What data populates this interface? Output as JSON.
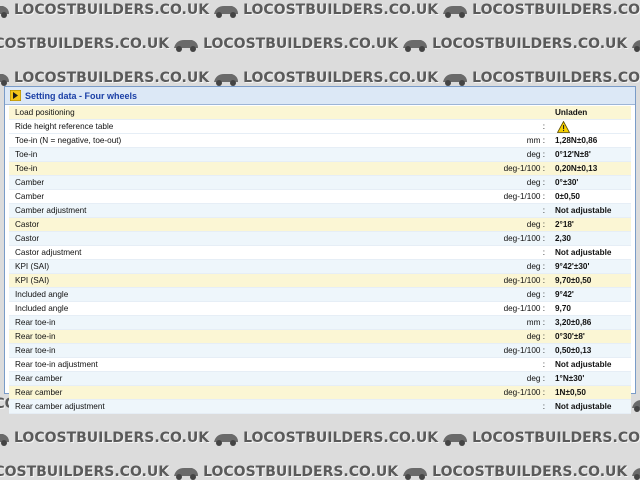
{
  "watermark": {
    "text": "LOCOSTBUILDERS.CO.UK"
  },
  "panel": {
    "title": "Setting data - Four wheels",
    "icon": "chevron-right-icon"
  },
  "rows": [
    {
      "label": "Load positioning",
      "unit": "",
      "value": "Unladen",
      "style": "hl"
    },
    {
      "label": "Ride height reference table",
      "unit": ":",
      "value": "",
      "icon": "warning-icon",
      "style": "plain"
    },
    {
      "label": "Toe-in (N = negative, toe-out)",
      "unit": "mm :",
      "value": "1,28N±0,86",
      "style": "plain"
    },
    {
      "label": "Toe-in",
      "unit": "deg :",
      "value": "0°12'N±8'",
      "style": "alt"
    },
    {
      "label": "Toe-in",
      "unit": "deg-1/100 :",
      "value": "0,20N±0,13",
      "style": "hl"
    },
    {
      "label": "Camber",
      "unit": "deg :",
      "value": "0°±30'",
      "style": "alt"
    },
    {
      "label": "Camber",
      "unit": "deg-1/100 :",
      "value": "0±0,50",
      "style": "plain"
    },
    {
      "label": "Camber adjustment",
      "unit": ":",
      "value": "Not adjustable",
      "style": "alt"
    },
    {
      "label": "Castor",
      "unit": "deg :",
      "value": "2°18'",
      "style": "hl"
    },
    {
      "label": "Castor",
      "unit": "deg-1/100 :",
      "value": "2,30",
      "style": "alt"
    },
    {
      "label": "Castor adjustment",
      "unit": ":",
      "value": "Not adjustable",
      "style": "plain"
    },
    {
      "label": "KPI (SAI)",
      "unit": "deg :",
      "value": "9°42'±30'",
      "style": "alt"
    },
    {
      "label": "KPI (SAI)",
      "unit": "deg-1/100 :",
      "value": "9,70±0,50",
      "style": "hl"
    },
    {
      "label": "Included angle",
      "unit": "deg :",
      "value": "9°42'",
      "style": "alt"
    },
    {
      "label": "Included angle",
      "unit": "deg-1/100 :",
      "value": "9,70",
      "style": "plain"
    },
    {
      "label": "Rear toe-in",
      "unit": "mm :",
      "value": "3,20±0,86",
      "style": "alt"
    },
    {
      "label": "Rear toe-in",
      "unit": "deg :",
      "value": "0°30'±8'",
      "style": "hl"
    },
    {
      "label": "Rear toe-in",
      "unit": "deg-1/100 :",
      "value": "0,50±0,13",
      "style": "alt"
    },
    {
      "label": "Rear toe-in adjustment",
      "unit": ":",
      "value": "Not adjustable",
      "style": "plain"
    },
    {
      "label": "Rear camber",
      "unit": "deg :",
      "value": "1°N±30'",
      "style": "alt"
    },
    {
      "label": "Rear camber",
      "unit": "deg-1/100 :",
      "value": "1N±0,50",
      "style": "hl"
    },
    {
      "label": "Rear camber adjustment",
      "unit": ":",
      "value": "Not adjustable",
      "style": "alt"
    }
  ]
}
